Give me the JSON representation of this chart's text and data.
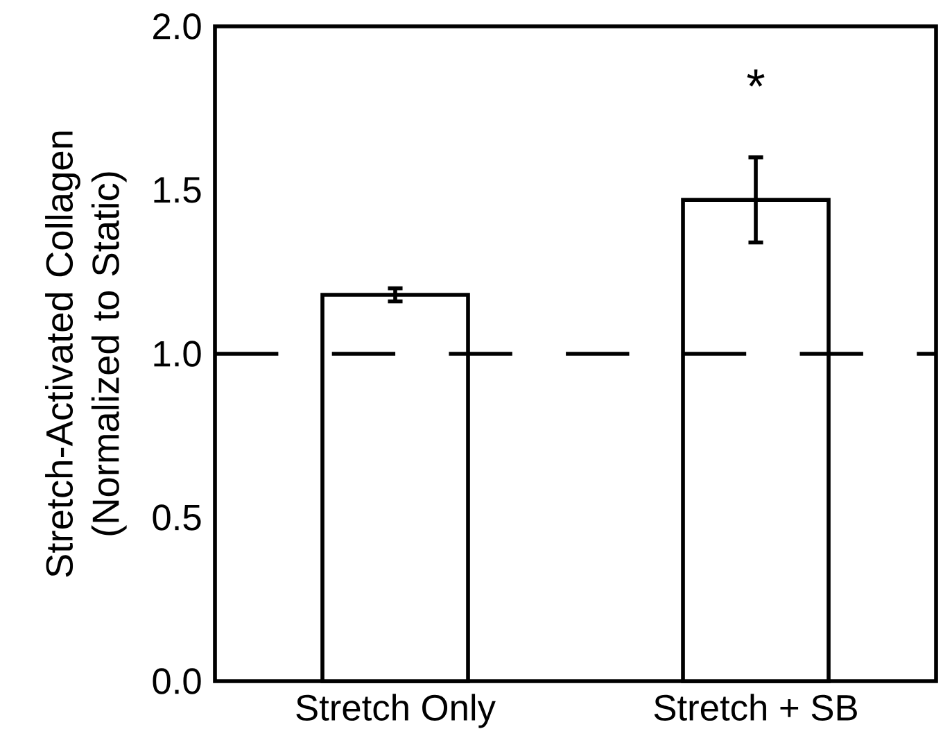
{
  "chart_data": {
    "type": "bar",
    "ylabel": "Stretch-Activated Collagen (Normalized to Static)",
    "categories": [
      "Stretch Only",
      "Stretch + SB"
    ],
    "values": [
      1.18,
      1.47
    ],
    "errors": [
      0.02,
      0.13
    ],
    "color": "#ffffff",
    "ylim": [
      0,
      2
    ],
    "yticks": [
      {
        "value": 0,
        "label": "0.0"
      },
      {
        "value": 0.5,
        "label": "0.5"
      },
      {
        "value": 1,
        "label": "1.0"
      },
      {
        "value": 1.5,
        "label": "1.5"
      },
      {
        "value": 2,
        "label": "2.0"
      }
    ],
    "ref_lines": [
      {
        "axis": "y",
        "value": 1,
        "line_style": "dashed"
      }
    ],
    "annotations": [
      "*"
    ],
    "grid": false
  }
}
